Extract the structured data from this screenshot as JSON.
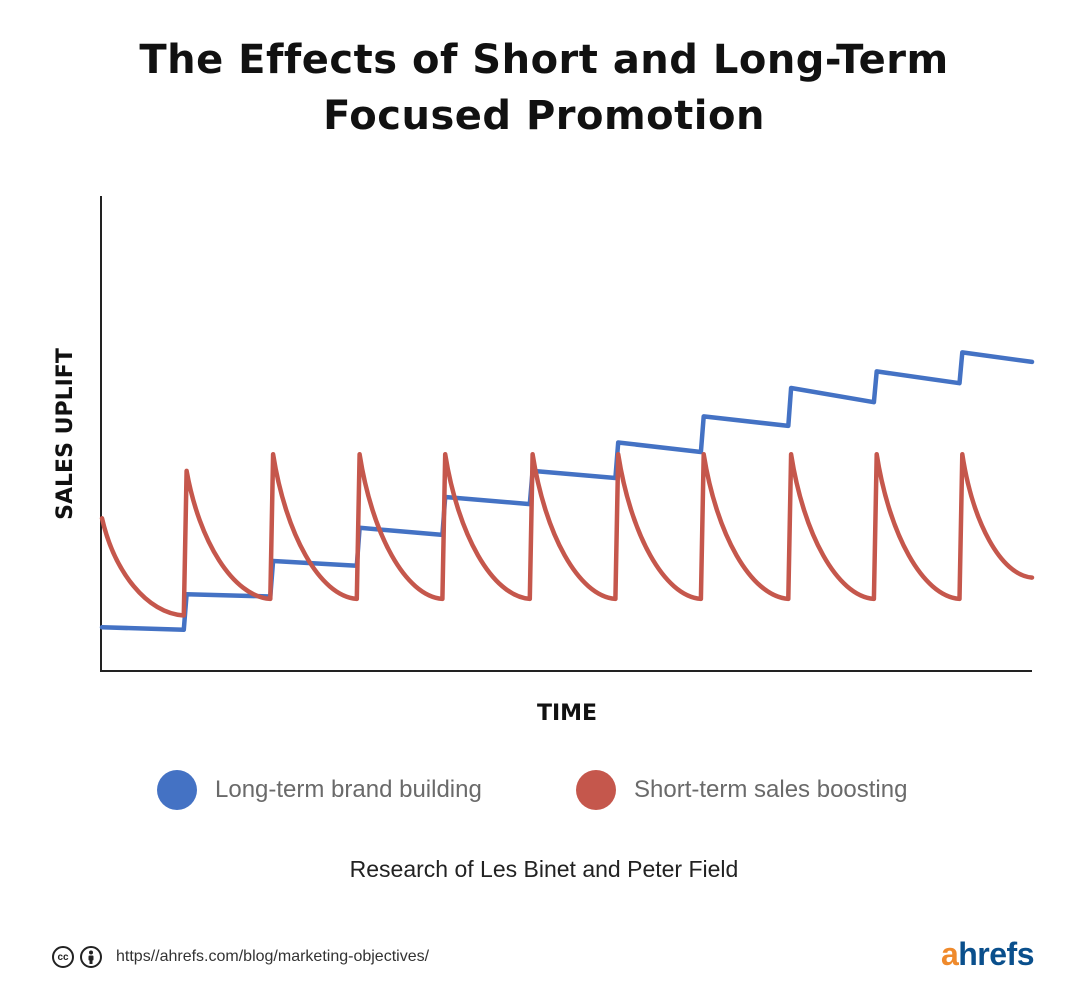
{
  "title_lines": [
    "The Effects of Short and Long-Term",
    "Focused Promotion"
  ],
  "chart_data": {
    "type": "line",
    "title": "The Effects of Short and Long-Term Focused Promotion",
    "xlabel": "TIME",
    "ylabel": "SALES UPLIFT",
    "ylim": [
      0,
      100
    ],
    "xlim": [
      0,
      100
    ],
    "grid": false,
    "legend_position": "bottom",
    "series": [
      {
        "name": "Long-term brand building",
        "color": "#4472c4",
        "x": [
          0,
          8.8,
          9.1,
          18.1,
          18.4,
          27.4,
          27.7,
          36.6,
          36.9,
          46.0,
          46.3,
          55.2,
          55.5,
          64.4,
          64.7,
          73.8,
          74.1,
          83.0,
          83.3,
          92.2,
          92.5,
          100
        ],
        "y": [
          9,
          8.5,
          16,
          15.5,
          23,
          22,
          30,
          28.5,
          36.5,
          35,
          42,
          40.5,
          48,
          46,
          53.5,
          51.5,
          59.5,
          56.5,
          63,
          60.5,
          67,
          65
        ]
      },
      {
        "name": "Short-term sales boosting",
        "color": "#c5574c",
        "x": [
          0,
          8.8,
          9.1,
          18.1,
          18.4,
          27.4,
          27.7,
          36.6,
          36.9,
          46.0,
          46.3,
          55.2,
          55.5,
          64.4,
          64.7,
          73.8,
          74.1,
          83.0,
          83.3,
          92.2,
          92.5,
          100
        ],
        "y": [
          32,
          11.5,
          42,
          15,
          45.5,
          15,
          45.5,
          15,
          45.5,
          15,
          45.5,
          15,
          45.5,
          15,
          45.5,
          15,
          45.5,
          15,
          45.5,
          15,
          45.5,
          19.5
        ]
      }
    ]
  },
  "legend": [
    {
      "label": "Long-term brand building",
      "color": "#4472c4"
    },
    {
      "label": "Short-term sales boosting",
      "color": "#c5574c"
    }
  ],
  "source": "Research of Les Binet and Peter Field",
  "footer": {
    "cc_icon": "creative-commons-icon",
    "by_icon": "attribution-icon",
    "url": "https//ahrefs.com/blog/marketing-objectives/",
    "brand_prefix": "a",
    "brand_rest": "hrefs"
  }
}
